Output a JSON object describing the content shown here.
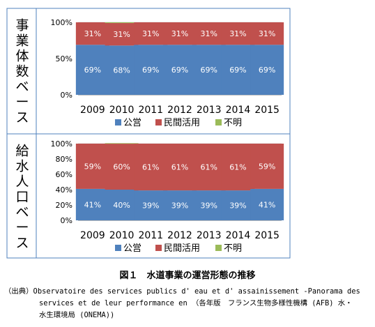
{
  "chart_data": [
    {
      "type": "bar",
      "stacked": true,
      "percent": true,
      "side_label": "事業体数ベース",
      "categories": [
        "2009",
        "2010",
        "2011",
        "2012",
        "2013",
        "2014",
        "2015"
      ],
      "y_ticks": [
        "0%",
        "50%",
        "100%"
      ],
      "ylim": [
        0,
        100
      ],
      "grid": true,
      "legend_position": "bottom",
      "series": [
        {
          "name": "公営",
          "color": "#4f81bd",
          "values": [
            69,
            68,
            69,
            69,
            69,
            69,
            69
          ],
          "labels": [
            "69%",
            "68%",
            "69%",
            "69%",
            "69%",
            "69%",
            "69%"
          ]
        },
        {
          "name": "民間活用",
          "color": "#c0504d",
          "values": [
            31,
            31,
            31,
            31,
            31,
            31,
            31
          ],
          "labels": [
            "31%",
            "31%",
            "31%",
            "31%",
            "31%",
            "31%",
            "31%"
          ]
        },
        {
          "name": "不明",
          "color": "#9bbb59",
          "values": [
            0,
            1,
            0,
            0,
            0,
            0,
            0
          ],
          "labels": []
        }
      ]
    },
    {
      "type": "bar",
      "stacked": true,
      "percent": true,
      "side_label": "給水人口ベース",
      "categories": [
        "2009",
        "2010",
        "2011",
        "2012",
        "2013",
        "2014",
        "2015"
      ],
      "y_ticks": [
        "0%",
        "20%",
        "40%",
        "60%",
        "80%",
        "100%"
      ],
      "ylim": [
        0,
        100
      ],
      "grid": true,
      "legend_position": "bottom",
      "series": [
        {
          "name": "公営",
          "color": "#4f81bd",
          "values": [
            41,
            40,
            39,
            39,
            39,
            39,
            41
          ],
          "labels": [
            "41%",
            "40%",
            "39%",
            "39%",
            "39%",
            "39%",
            "41%"
          ]
        },
        {
          "name": "民間活用",
          "color": "#c0504d",
          "values": [
            59,
            60,
            61,
            61,
            61,
            61,
            59
          ],
          "labels": [
            "59%",
            "60%",
            "61%",
            "61%",
            "61%",
            "61%",
            "59%"
          ]
        },
        {
          "name": "不明",
          "color": "#9bbb59",
          "values": [
            0,
            0.6,
            0,
            0,
            0,
            0,
            0
          ],
          "labels": []
        }
      ]
    }
  ],
  "caption": "図１　水道事業の運営形態の推移",
  "source_line1": "（出典）Observatoire des services publics d' eau et d' assainissement -Panorama des",
  "source_line2": "services et de leur performance en （各年版　フランス生物多様性機構 (AFB) 水・",
  "source_line3": "水生環境局 (ONEMA))"
}
